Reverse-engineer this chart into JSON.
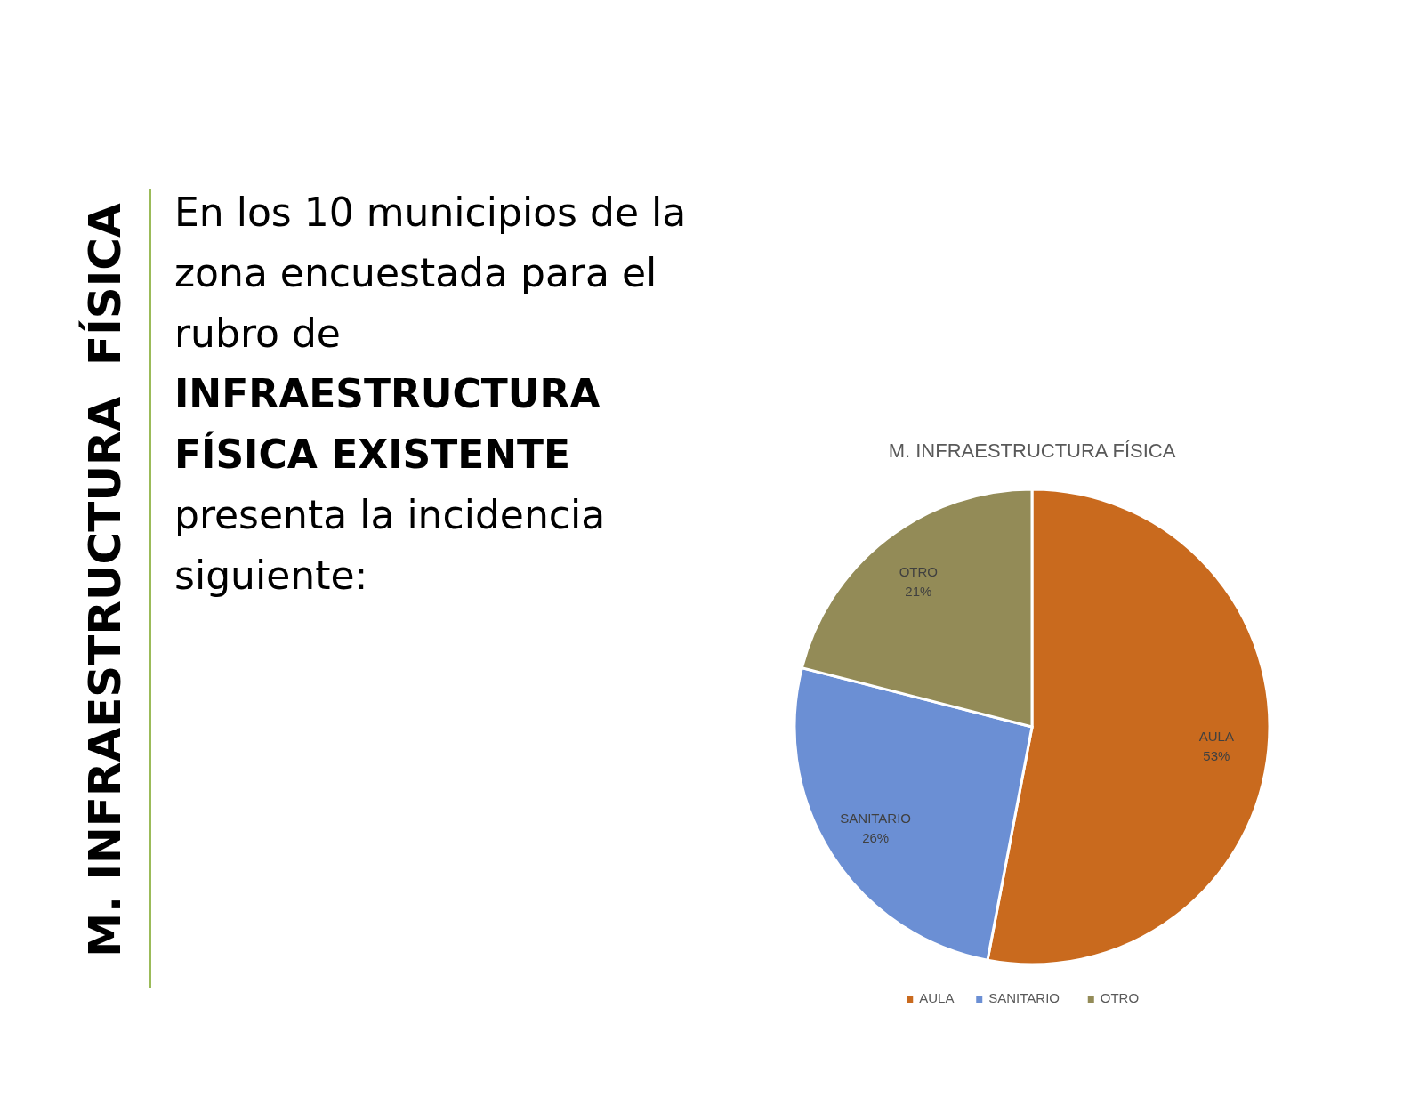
{
  "chart_data": [
    {
      "type": "other",
      "title": "M. INFRAESTRUCTURA  FÍSICA",
      "annotations": [
        "En los 10 municipios de la zona encuestada para el rubro de",
        "INFRAESTRUCTURA FÍSICA EXISTENTE",
        "presenta la incidencia siguiente:"
      ]
    },
    {
      "type": "pie",
      "title": "M. INFRAESTRUCTURA FÍSICA",
      "categories": [
        "AULA",
        "SANITARIO",
        "OTRO"
      ],
      "values": [
        53,
        26,
        21
      ],
      "colors": [
        "#c96a1e",
        "#6b8fd4",
        "#938b57"
      ],
      "value_labels": [
        "53%",
        "26%",
        "21%"
      ],
      "legend": "bottom"
    }
  ]
}
